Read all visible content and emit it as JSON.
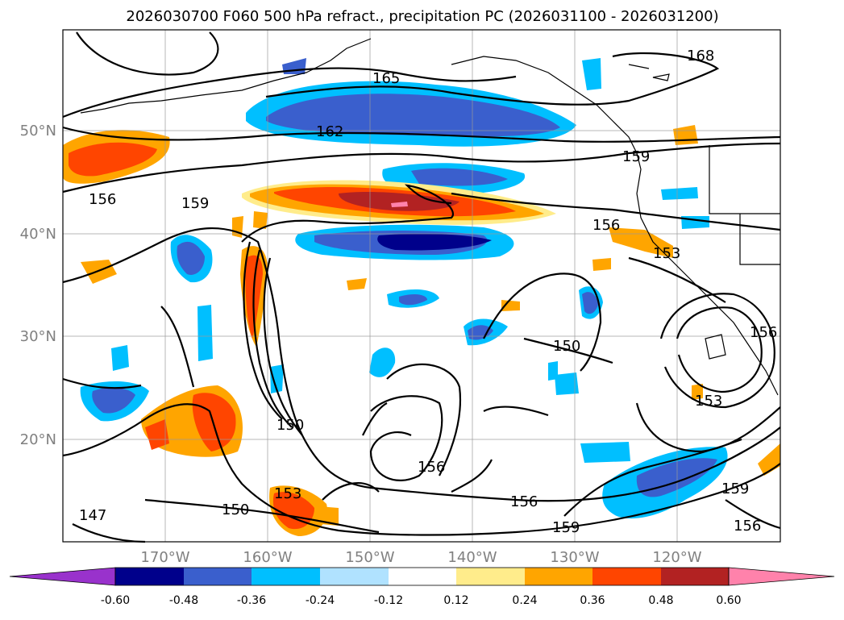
{
  "title": "2026030700 F060 500 hPa refract., precipitation PC (2026031100 - 2026031200)",
  "map": {
    "lon_labels": [
      "170°W",
      "160°W",
      "150°W",
      "140°W",
      "130°W",
      "120°W"
    ],
    "lat_labels": [
      "50°N",
      "40°N",
      "30°N",
      "20°N"
    ],
    "contour_labels": [
      "168",
      "165",
      "162",
      "159",
      "159",
      "159",
      "159",
      "156",
      "156",
      "156",
      "156",
      "156",
      "156",
      "153",
      "153",
      "153",
      "150",
      "150",
      "150",
      "147"
    ]
  },
  "colorbar": {
    "tick_labels": [
      "-0.60",
      "-0.48",
      "-0.36",
      "-0.24",
      "-0.12",
      "0.12",
      "0.24",
      "0.36",
      "0.48",
      "0.60"
    ],
    "colors": [
      "#9932cc",
      "#00008b",
      "#3a5fcd",
      "#00bfff",
      "#b0e2ff",
      "#ffffff",
      "#ffec8b",
      "#ffa500",
      "#ff4500",
      "#b22222",
      "#ff82ab"
    ]
  }
}
